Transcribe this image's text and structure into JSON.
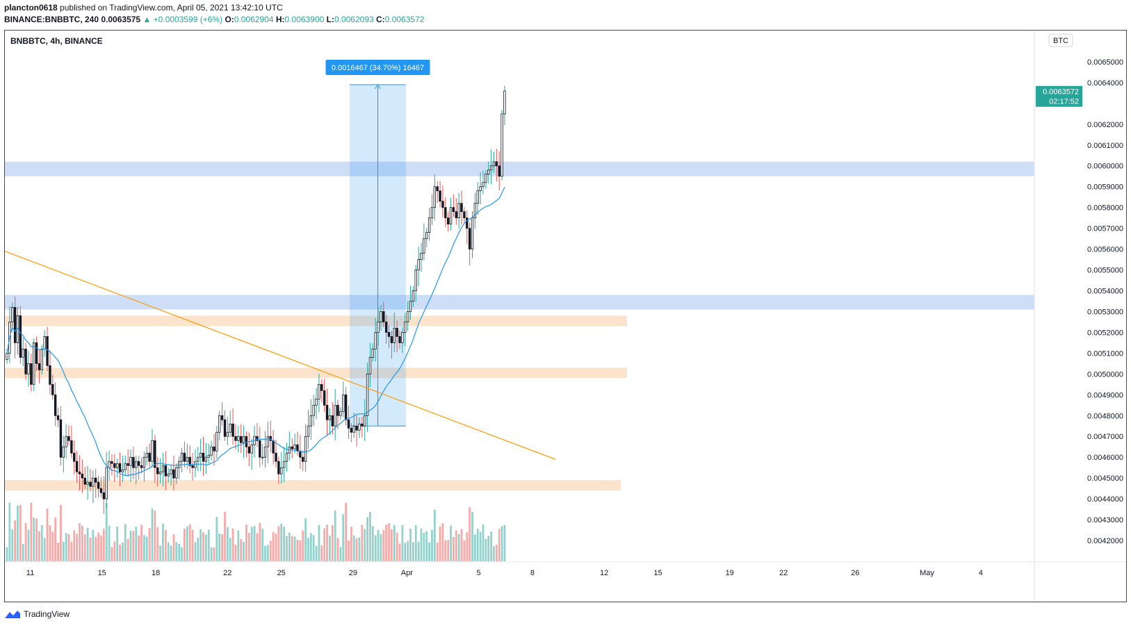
{
  "header": {
    "author": "plancton0618",
    "published_text": "published on TradingView.com, April 05, 2021 13:42:10 UTC",
    "symbol": "BINANCE:BNBBTC, 240",
    "last": "0.0063575",
    "change": "+0.0003599 (+6%)",
    "open_label": "O:",
    "open": "0.0062904",
    "high_label": "H:",
    "high": "0.0063900",
    "low_label": "L:",
    "low": "0.0062093",
    "close_label": "C:",
    "close": "0.0063572"
  },
  "legend": "BNBBTC, 4h, BINANCE",
  "currency": "BTC",
  "price_tag": {
    "price": "0.0063572",
    "countdown": "02:17:52"
  },
  "measure_label": "0.0016467 (34.70%) 16467",
  "footer_brand": "TradingView",
  "colors": {
    "up": "#26a69a",
    "down": "#ef5350",
    "ma": "#2196f3",
    "trendline": "#ff9800",
    "blue_zone": "#a7c3f0",
    "orange_zone": "#fbd5b0",
    "measure": "#2196f3"
  },
  "chart_data": {
    "type": "candlestick",
    "symbol": "BNBBTC",
    "interval": "4h",
    "ylim": [
      0.0041,
      0.00665
    ],
    "y_ticks": [
      "0.0042000",
      "0.0043000",
      "0.0044000",
      "0.0045000",
      "0.0046000",
      "0.0047000",
      "0.0048000",
      "0.0049000",
      "0.0050000",
      "0.0051000",
      "0.0052000",
      "0.0053000",
      "0.0054000",
      "0.0055000",
      "0.0056000",
      "0.0057000",
      "0.0058000",
      "0.0059000",
      "0.0060000",
      "0.0061000",
      "0.0062000",
      "0.0064000",
      "0.0065000"
    ],
    "x_ticks": [
      {
        "label": "11",
        "day": 11
      },
      {
        "label": "15",
        "day": 15
      },
      {
        "label": "18",
        "day": 18
      },
      {
        "label": "22",
        "day": 22
      },
      {
        "label": "25",
        "day": 25
      },
      {
        "label": "29",
        "day": 29
      },
      {
        "label": "Apr",
        "day": 32
      },
      {
        "label": "5",
        "day": 36
      },
      {
        "label": "8",
        "day": 39
      },
      {
        "label": "12",
        "day": 43
      },
      {
        "label": "15",
        "day": 46
      },
      {
        "label": "19",
        "day": 50
      },
      {
        "label": "22",
        "day": 53
      },
      {
        "label": "26",
        "day": 57
      },
      {
        "label": "May",
        "day": 61
      },
      {
        "label": "4",
        "day": 64
      }
    ],
    "x_unit": "days since Mar 1, 2021 (Apr 1 = 32)",
    "closes": [
      0.0051,
      0.00525,
      0.00532,
      0.00515,
      0.00528,
      0.00508,
      0.00512,
      0.005,
      0.00505,
      0.00495,
      0.00515,
      0.00505,
      0.00502,
      0.00512,
      0.00518,
      0.00504,
      0.00495,
      0.0049,
      0.0048,
      0.00478,
      0.0046,
      0.00465,
      0.0047,
      0.00468,
      0.00462,
      0.00458,
      0.00453,
      0.00452,
      0.0045,
      0.00447,
      0.00448,
      0.00446,
      0.0045,
      0.00448,
      0.00445,
      0.00443,
      0.0044,
      0.00455,
      0.00458,
      0.00457,
      0.00455,
      0.00457,
      0.00453,
      0.00454,
      0.00457,
      0.00456,
      0.0046,
      0.00455,
      0.00458,
      0.00456,
      0.00455,
      0.0046,
      0.00462,
      0.00458,
      0.00468,
      0.00455,
      0.00452,
      0.00453,
      0.00456,
      0.00451,
      0.00452,
      0.00454,
      0.0045,
      0.00455,
      0.00458,
      0.00462,
      0.00458,
      0.0046,
      0.00456,
      0.00455,
      0.00458,
      0.0046,
      0.00462,
      0.00458,
      0.0046,
      0.00461,
      0.00465,
      0.00463,
      0.00472,
      0.0048,
      0.00478,
      0.0047,
      0.00472,
      0.00476,
      0.0047,
      0.00468,
      0.0047,
      0.00467,
      0.0047,
      0.00465,
      0.00462,
      0.00466,
      0.0047,
      0.00468,
      0.0046,
      0.0046,
      0.00465,
      0.0047,
      0.00468,
      0.00462,
      0.00458,
      0.00452,
      0.00455,
      0.00458,
      0.00462,
      0.00465,
      0.00464,
      0.00466,
      0.00463,
      0.0046,
      0.00458,
      0.0047,
      0.00475,
      0.0048,
      0.00485,
      0.00488,
      0.00495,
      0.00492,
      0.00485,
      0.00478,
      0.0048,
      0.00475,
      0.00485,
      0.0048,
      0.00482,
      0.0049,
      0.00478,
      0.00474,
      0.00472,
      0.00475,
      0.00473,
      0.00476,
      0.00475,
      0.0048,
      0.005,
      0.00508,
      0.00512,
      0.0052,
      0.00525,
      0.0053,
      0.00525,
      0.0052,
      0.00518,
      0.00515,
      0.00522,
      0.00518,
      0.00515,
      0.0052,
      0.00525,
      0.0053,
      0.00535,
      0.0054,
      0.0055,
      0.00555,
      0.00558,
      0.00565,
      0.00568,
      0.00575,
      0.0058,
      0.0059,
      0.00588,
      0.00583,
      0.0058,
      0.00575,
      0.00572,
      0.0058,
      0.00578,
      0.00575,
      0.00582,
      0.00578,
      0.00575,
      0.0057,
      0.0056,
      0.00575,
      0.00582,
      0.00588,
      0.0059,
      0.00592,
      0.00596,
      0.00598,
      0.006,
      0.00602,
      0.006,
      0.00595,
      0.00625,
      0.00636
    ],
    "moving_average": "blue line lagging close",
    "zones": [
      {
        "type": "resistance",
        "color": "blue",
        "from": 0.00595,
        "to": 0.00602
      },
      {
        "type": "resistance",
        "color": "blue",
        "from": 0.00531,
        "to": 0.00538
      },
      {
        "type": "support",
        "color": "orange",
        "from": 0.00523,
        "to": 0.00528
      },
      {
        "type": "support",
        "color": "orange",
        "from": 0.00498,
        "to": 0.00503
      },
      {
        "type": "support",
        "color": "orange",
        "from": 0.00444,
        "to": 0.00449
      }
    ],
    "trendline": {
      "from": [
        0.5,
        0.00559
      ],
      "to": [
        39.5,
        0.00459
      ]
    },
    "measure": {
      "from_price": 0.00475,
      "to_price": 0.00639,
      "change": 0.0016467,
      "percent": 34.7
    }
  }
}
